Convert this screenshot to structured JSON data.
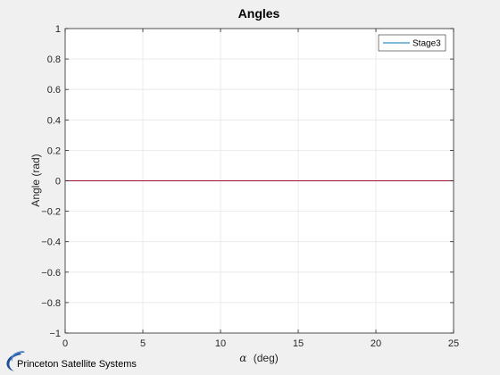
{
  "colors": {
    "series_stage3": "#0072bd",
    "series_overlay": "#a2142f",
    "grid": "#e6e6e6",
    "axis": "#262626",
    "logo": "#1f4e96"
  },
  "footer": {
    "logo_text": "Princeton Satellite Systems",
    "logo_icon": "swoosh-logo-icon"
  },
  "chart_data": {
    "type": "line",
    "title": "Angles",
    "xlabel_symbol": "α",
    "xlabel_unit": "(deg)",
    "ylabel": "Angle (rad)",
    "xlim": [
      0,
      25
    ],
    "ylim": [
      -1,
      1
    ],
    "x_ticks": [
      0,
      5,
      10,
      15,
      20,
      25
    ],
    "y_ticks": [
      -1,
      -0.8,
      -0.6,
      -0.4,
      -0.2,
      0,
      0.2,
      0.4,
      0.6,
      0.8,
      1
    ],
    "x_tick_labels": [
      "0",
      "5",
      "10",
      "15",
      "20",
      "25"
    ],
    "y_tick_labels": [
      "−1",
      "−0.8",
      "−0.6",
      "−0.4",
      "−0.2",
      "0",
      "0.2",
      "0.4",
      "0.6",
      "0.8",
      "1"
    ],
    "grid": true,
    "legend_position": "top-right",
    "series": [
      {
        "name": "Stage3",
        "x": [
          0,
          25
        ],
        "y": [
          0,
          0
        ],
        "color": "#0072bd",
        "in_legend": true
      },
      {
        "x": [
          0,
          25
        ],
        "y": [
          0,
          0
        ],
        "color": "#a2142f",
        "in_legend": false
      }
    ]
  }
}
